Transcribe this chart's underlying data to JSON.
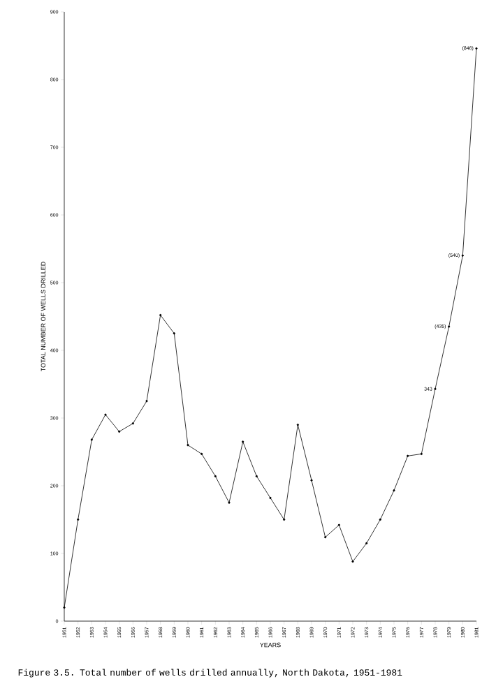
{
  "chart_data": {
    "type": "line",
    "title": "Figure 3.5.  Total number of wells drilled annually, North Dakota, 1951-1981",
    "xlabel": "YEARS",
    "ylabel": "TOTAL NUMBER OF WELLS DRILLED",
    "categories": [
      "1951",
      "1952",
      "1953",
      "1954",
      "1955",
      "1956",
      "1957",
      "1958",
      "1959",
      "1960",
      "1961",
      "1962",
      "1963",
      "1964",
      "1965",
      "1966",
      "1967",
      "1968",
      "1969",
      "1970",
      "1971",
      "1972",
      "1973",
      "1974",
      "1975",
      "1976",
      "1977",
      "1978",
      "1979",
      "1980",
      "1981"
    ],
    "values": [
      20,
      150,
      268,
      305,
      280,
      292,
      325,
      452,
      425,
      260,
      247,
      214,
      175,
      265,
      214,
      182,
      150,
      290,
      208,
      124,
      142,
      88,
      115,
      150,
      193,
      244,
      247,
      343,
      435,
      540,
      846
    ],
    "value_labels": [
      null,
      null,
      null,
      null,
      null,
      null,
      null,
      null,
      null,
      null,
      null,
      null,
      null,
      null,
      null,
      null,
      null,
      null,
      null,
      null,
      null,
      null,
      null,
      null,
      null,
      null,
      null,
      "343",
      "(435)",
      "(540)",
      "(846)"
    ],
    "color": "#000000",
    "marker": "circle",
    "line_style": "solid",
    "ylim": [
      0,
      900
    ],
    "yticks": [
      0,
      100,
      200,
      300,
      400,
      500,
      600,
      700,
      800,
      900
    ]
  }
}
